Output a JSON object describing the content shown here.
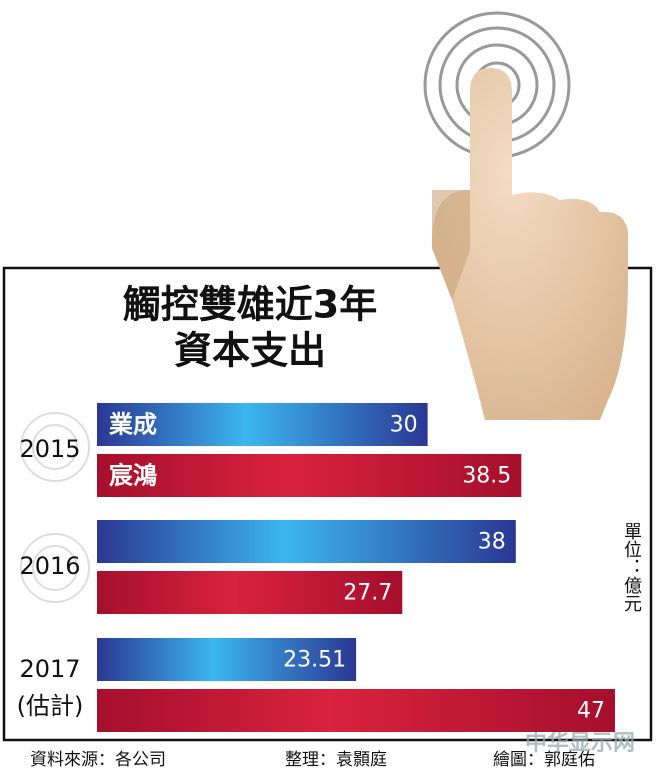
{
  "chart_data": {
    "type": "hbar_grouped",
    "title": [
      "觸控雙雄近3年",
      "資本支出"
    ],
    "categories": [
      "2015",
      "2016",
      "2017"
    ],
    "category_notes": [
      null,
      null,
      "(估計)"
    ],
    "highlight_category_color": "#c0102a",
    "series": [
      {
        "name": "業成",
        "color": "#2a3793",
        "highlight_color": "#3cb6ef",
        "values": [
          30,
          38,
          23.51
        ]
      },
      {
        "name": "宸鴻",
        "color": "#a50f2c",
        "highlight_color": "#d8223e",
        "values": [
          38.5,
          27.7,
          47
        ]
      }
    ],
    "xlim": [
      0,
      48
    ],
    "unit": "單位：億元",
    "source": "資料來源：各公司",
    "editor": "整理：袁顥庭",
    "artist": "繪圖：郭庭佑",
    "watermark": "中华显示网"
  }
}
